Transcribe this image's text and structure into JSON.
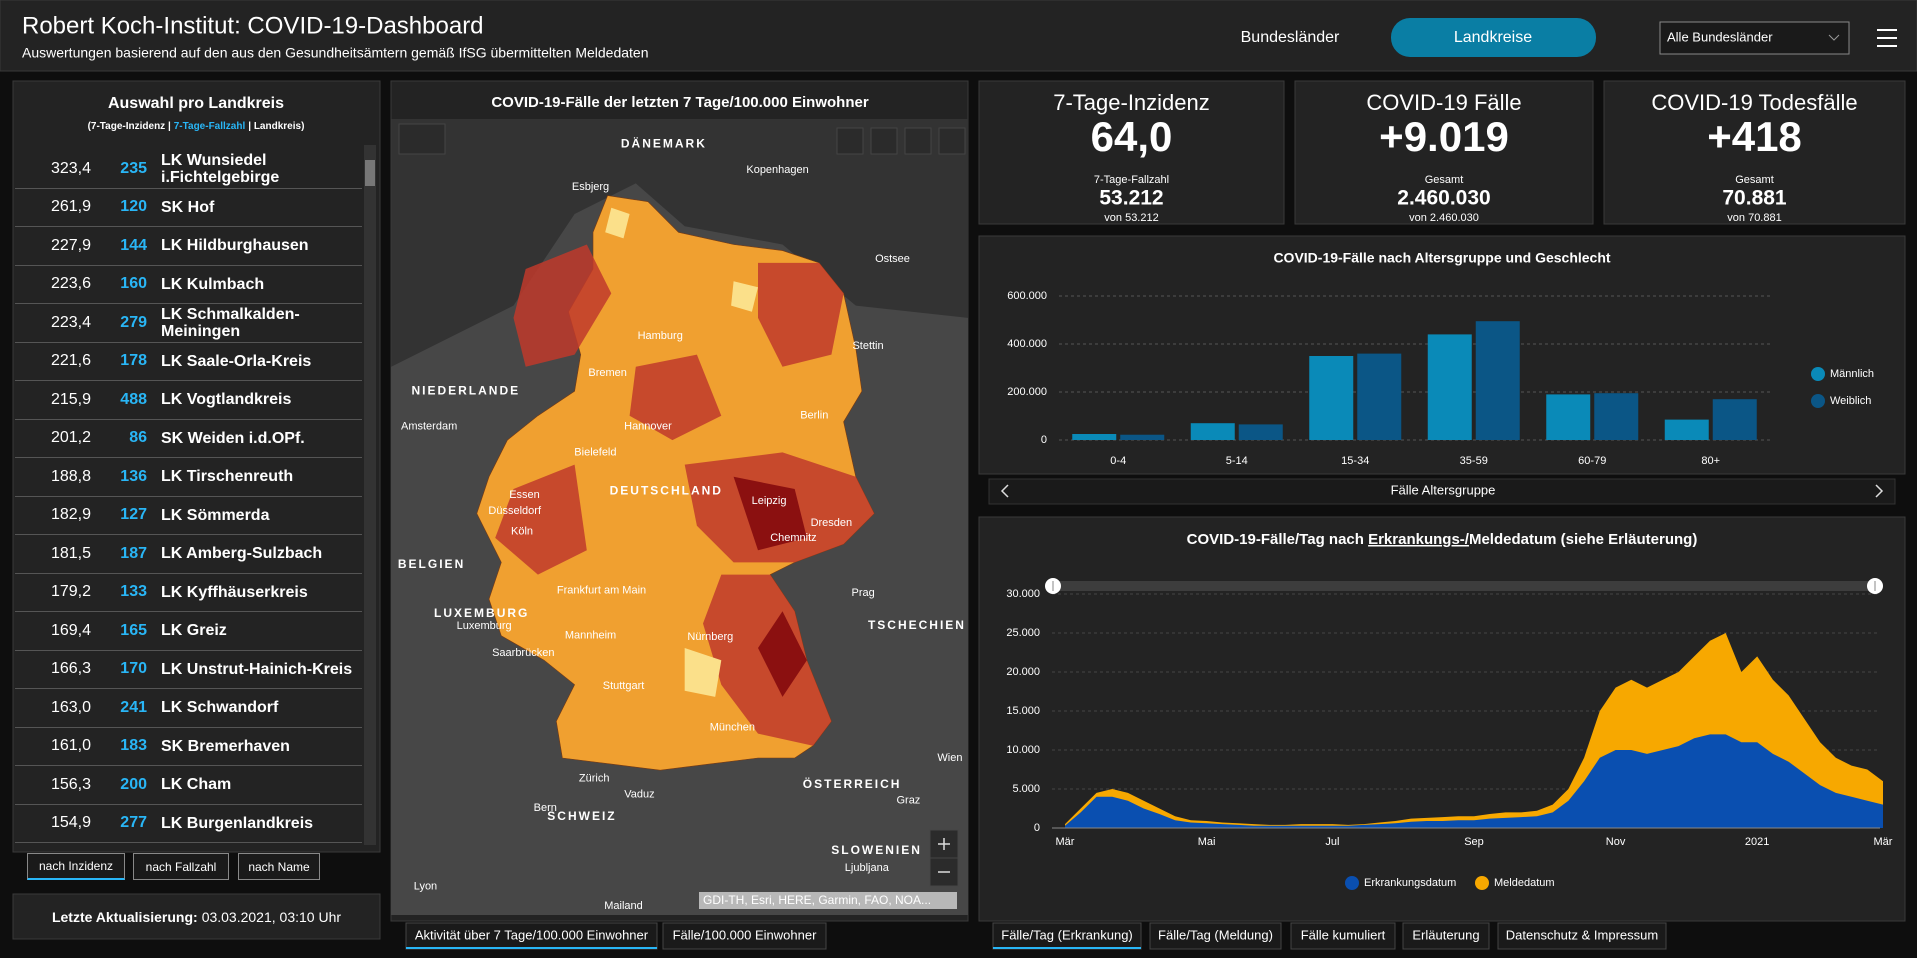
{
  "header": {
    "title": "Robert Koch-Institut: COVID-19-Dashboard",
    "subtitle": "Auswertungen basierend auf den aus den Gesundheitsämtern gemäß IfSG übermittelten Meldedaten",
    "nav": [
      "Bundesländer",
      "Landkreise"
    ],
    "dropdown": "Alle Bundesländer"
  },
  "list": {
    "title": "Auswahl pro Landkreis",
    "legend_parts": [
      "(7-Tage-Inzidenz |",
      "7-Tage-Fallzahl",
      "| Landkreis)"
    ],
    "rows": [
      [
        "323,4",
        235,
        "LK Wunsiedel i.Fichtelgebirge"
      ],
      [
        "261,9",
        120,
        "SK Hof"
      ],
      [
        "227,9",
        144,
        "LK Hildburghausen"
      ],
      [
        "223,6",
        160,
        "LK Kulmbach"
      ],
      [
        "223,4",
        279,
        "LK Schmalkalden-Meiningen"
      ],
      [
        "221,6",
        178,
        "LK Saale-Orla-Kreis"
      ],
      [
        "215,9",
        488,
        "LK Vogtlandkreis"
      ],
      [
        "201,2",
        86,
        "SK Weiden i.d.OPf."
      ],
      [
        "188,8",
        136,
        "LK Tirschenreuth"
      ],
      [
        "182,9",
        127,
        "LK Sömmerda"
      ],
      [
        "181,5",
        187,
        "LK Amberg-Sulzbach"
      ],
      [
        "179,2",
        133,
        "LK Kyffhäuserkreis"
      ],
      [
        "169,4",
        165,
        "LK Greiz"
      ],
      [
        "166,3",
        170,
        "LK Unstrut-Hainich-Kreis"
      ],
      [
        "163,0",
        241,
        "LK Schwandorf"
      ],
      [
        "161,0",
        183,
        "SK Bremerhaven"
      ],
      [
        "156,3",
        200,
        "LK Cham"
      ],
      [
        "154,9",
        277,
        "LK Burgenlandkreis"
      ]
    ],
    "sort_buttons": [
      "nach Inzidenz",
      "nach Fallzahl",
      "nach Name"
    ],
    "update": {
      "label": "Letzte Aktualisierung:",
      "value": "03.03.2021, 03:10 Uhr"
    }
  },
  "map": {
    "title": "COVID-19-Fälle der letzten 7 Tage/100.000 Einwohner",
    "labels": [
      "DÄNEMARK",
      "Kopenhagen",
      "Esbjerg",
      "Ostsee",
      "Hamburg",
      "Stettin",
      "Bremen",
      "NIEDERLANDE",
      "Amsterdam",
      "Hannover",
      "Berlin",
      "Bielefeld",
      "Essen",
      "Düsseldorf",
      "DEUTSCHLAND",
      "Leipzig",
      "Dresden",
      "Köln",
      "Chemnitz",
      "BELGIEN",
      "Frankfurt am Main",
      "Prag",
      "LUXEMBURG",
      "Luxemburg",
      "Mannheim",
      "Nürnberg",
      "TSCHECHIEN",
      "Saarbrücken",
      "Stuttgart",
      "Wien",
      "München",
      "ÖSTERREICH",
      "Zürich",
      "Vaduz",
      "Graz",
      "Bern",
      "SCHWEIZ",
      "SLOWENIEN",
      "Ljubljana",
      "Lyon",
      "Mailand"
    ],
    "attribution": "GDI-TH, Esri, HERE, Garmin, FAO, NOA...",
    "tabs": [
      "Aktivität über 7 Tage/100.000 Einwohner",
      "Fälle/100.000 Einwohner"
    ]
  },
  "kpis": [
    {
      "title": "7-Tage-Inzidenz",
      "value": "64,0",
      "sub_label": "7-Tage-Fallzahl",
      "sub_value": "53.212",
      "note": "von 53.212"
    },
    {
      "title": "COVID-19 Fälle",
      "value": "+9.019",
      "sub_label": "Gesamt",
      "sub_value": "2.460.030",
      "note": "von 2.460.030"
    },
    {
      "title": "COVID-19 Todesfälle",
      "value": "+418",
      "sub_label": "Gesamt",
      "sub_value": "70.881",
      "note": "von 70.881"
    }
  ],
  "chart_data": [
    {
      "type": "bar",
      "title": "COVID-19-Fälle nach Altersgruppe und Geschlecht",
      "categories": [
        "0-4",
        "5-14",
        "15-34",
        "35-59",
        "60-79",
        "80+"
      ],
      "series": [
        {
          "name": "Männlich",
          "color": "#0a8ab8",
          "values": [
            25000,
            70000,
            350000,
            440000,
            190000,
            85000
          ]
        },
        {
          "name": "Weiblich",
          "color": "#0b5686",
          "values": [
            22000,
            65000,
            360000,
            495000,
            195000,
            170000
          ]
        }
      ],
      "xlabel": "Fälle Altersgruppe",
      "ylim": [
        0,
        600000
      ],
      "yticks": [
        0,
        {
          "value": 200000,
          "label": "200.000"
        },
        {
          "value": 400000,
          "label": "400.000"
        },
        {
          "value": 600000,
          "label": "600.000"
        }
      ],
      "grid": true,
      "legend": "right"
    },
    {
      "type": "area",
      "title_parts": [
        "COVID-19-Fälle/Tag nach ",
        "Erkrankungs-/",
        "Meldedatum (siehe Erläuterung)"
      ],
      "categories": [
        "Mär",
        null,
        null,
        null,
        null,
        null,
        null,
        null,
        null,
        "Mai",
        null,
        null,
        null,
        null,
        null,
        null,
        null,
        "Jul",
        null,
        null,
        null,
        null,
        null,
        null,
        null,
        null,
        "Sep",
        null,
        null,
        null,
        null,
        null,
        null,
        null,
        null,
        "Nov",
        null,
        null,
        null,
        null,
        null,
        null,
        null,
        null,
        "2021",
        null,
        null,
        null,
        null,
        null,
        null,
        null,
        "Mär"
      ],
      "series": [
        {
          "name": "Erkrankungsdatum",
          "color": "#0a4fb0",
          "values": [
            300,
            2000,
            4000,
            4000,
            3500,
            2500,
            1800,
            1000,
            700,
            600,
            500,
            400,
            300,
            300,
            300,
            300,
            300,
            300,
            300,
            400,
            500,
            600,
            800,
            900,
            900,
            1000,
            1000,
            1200,
            1300,
            1400,
            1500,
            2000,
            3500,
            6000,
            9000,
            10000,
            10000,
            9500,
            10000,
            10500,
            11500,
            12000,
            12000,
            11000,
            11000,
            9500,
            8500,
            7000,
            5500,
            4500,
            4000,
            3500,
            3000
          ]
        },
        {
          "name": "Meldedatum",
          "color": "#f7a800",
          "values": [
            500,
            2500,
            4500,
            5000,
            4500,
            3500,
            2500,
            1500,
            1000,
            900,
            700,
            600,
            500,
            400,
            400,
            500,
            500,
            500,
            400,
            500,
            700,
            900,
            1200,
            1300,
            1400,
            1500,
            1500,
            1800,
            2000,
            2000,
            2200,
            3000,
            5000,
            9000,
            15000,
            18000,
            19000,
            18000,
            19000,
            20000,
            22000,
            24000,
            25000,
            20000,
            22000,
            19000,
            17000,
            14000,
            11000,
            9000,
            8000,
            7500,
            6000
          ]
        }
      ],
      "ylim": [
        0,
        30000
      ],
      "yticks": [
        0,
        {
          "value": 5000,
          "label": "5.000"
        },
        {
          "value": 10000,
          "label": "10.000"
        },
        {
          "value": 15000,
          "label": "15.000"
        },
        {
          "value": 20000,
          "label": "20.000"
        },
        {
          "value": 25000,
          "label": "25.000"
        },
        {
          "value": 30000,
          "label": "30.000"
        }
      ],
      "grid": true,
      "legend": "bottom"
    }
  ],
  "tabs": [
    "Fälle/Tag (Erkrankung)",
    "Fälle/Tag (Meldung)",
    "Fälle kumuliert",
    "Erläuterung",
    "Datenschutz & Impressum"
  ]
}
